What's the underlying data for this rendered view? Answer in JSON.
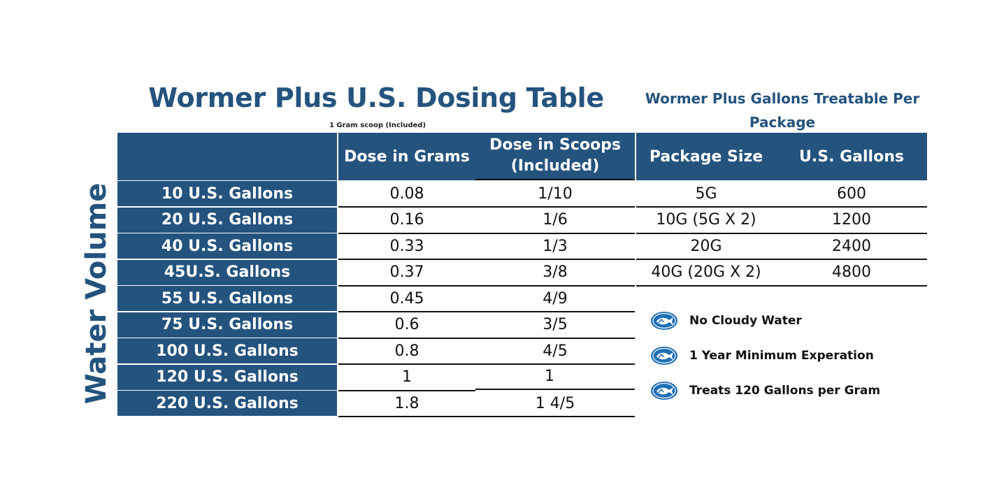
{
  "title": "Wormer Plus U.S. Dosing Table",
  "scoop_note": "1 Gram scoop (Included)",
  "side_title": "Wormer Plus Gallons Treatable Per Package",
  "vertical_label": "Water Volume",
  "dosing": {
    "headers": {
      "grams": "Dose in Grams",
      "scoops_line1": "Dose in Scoops",
      "scoops_line2": "(Included)"
    },
    "rows": [
      {
        "volume": "10 U.S. Gallons",
        "grams": "0.08",
        "scoops": "1/10"
      },
      {
        "volume": "20 U.S. Gallons",
        "grams": "0.16",
        "scoops": "1/6"
      },
      {
        "volume": "40 U.S. Gallons",
        "grams": "0.33",
        "scoops": "1/3"
      },
      {
        "volume": "45U.S. Gallons",
        "grams": "0.37",
        "scoops": "3/8"
      },
      {
        "volume": "55 U.S. Gallons",
        "grams": "0.45",
        "scoops": "4/9"
      },
      {
        "volume": "75 U.S. Gallons",
        "grams": "0.6",
        "scoops": "3/5"
      },
      {
        "volume": "100 U.S. Gallons",
        "grams": "0.8",
        "scoops": "4/5"
      },
      {
        "volume": "120 U.S. Gallons",
        "grams": "1",
        "scoops": "1"
      },
      {
        "volume": "220 U.S. Gallons",
        "grams": "1.8",
        "scoops": "1 4/5"
      }
    ]
  },
  "packages": {
    "headers": {
      "size": "Package Size",
      "gallons": "U.S. Gallons"
    },
    "rows": [
      {
        "size": "5G",
        "gallons": "600"
      },
      {
        "size": "10G (5G X 2)",
        "gallons": "1200"
      },
      {
        "size": "20G",
        "gallons": "2400"
      },
      {
        "size": "40G (20G X 2)",
        "gallons": "4800"
      }
    ]
  },
  "features": [
    {
      "icon": "fish-badge-icon",
      "text": "No Cloudy Water"
    },
    {
      "icon": "fish-badge-icon",
      "text": "1 Year Minimum Experation"
    },
    {
      "icon": "fish-badge-icon",
      "text": "Treats 120 Gallons per Gram"
    }
  ],
  "colors": {
    "brand_blue": "#24537e",
    "text": "#111111",
    "background": "#ffffff"
  }
}
